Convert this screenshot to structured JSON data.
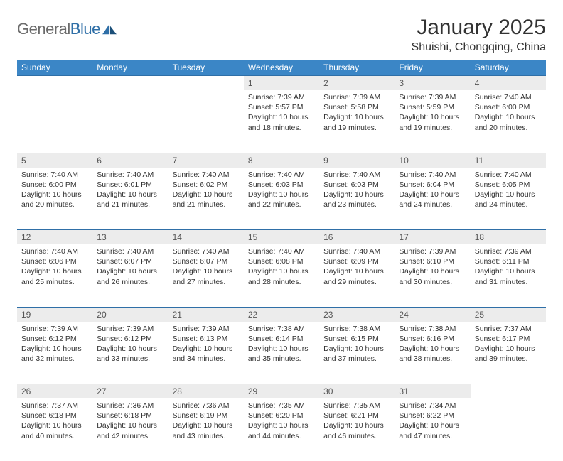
{
  "logo": {
    "text1": "General",
    "text2": "Blue"
  },
  "title": "January 2025",
  "location": "Shuishi, Chongqing, China",
  "colors": {
    "header_bg": "#3b86c6",
    "header_text": "#ffffff",
    "daynum_bg": "#ececec",
    "rule": "#2f6fa7",
    "body_text": "#333333",
    "logo_gray": "#6b6b6b",
    "logo_blue": "#2f6fa7"
  },
  "day_headers": [
    "Sunday",
    "Monday",
    "Tuesday",
    "Wednesday",
    "Thursday",
    "Friday",
    "Saturday"
  ],
  "weeks": [
    {
      "nums": [
        "",
        "",
        "",
        "1",
        "2",
        "3",
        "4"
      ],
      "cells": [
        {
          "sunrise": "",
          "sunset": "",
          "daylight": ""
        },
        {
          "sunrise": "",
          "sunset": "",
          "daylight": ""
        },
        {
          "sunrise": "",
          "sunset": "",
          "daylight": ""
        },
        {
          "sunrise": "Sunrise: 7:39 AM",
          "sunset": "Sunset: 5:57 PM",
          "daylight": "Daylight: 10 hours and 18 minutes."
        },
        {
          "sunrise": "Sunrise: 7:39 AM",
          "sunset": "Sunset: 5:58 PM",
          "daylight": "Daylight: 10 hours and 19 minutes."
        },
        {
          "sunrise": "Sunrise: 7:39 AM",
          "sunset": "Sunset: 5:59 PM",
          "daylight": "Daylight: 10 hours and 19 minutes."
        },
        {
          "sunrise": "Sunrise: 7:40 AM",
          "sunset": "Sunset: 6:00 PM",
          "daylight": "Daylight: 10 hours and 20 minutes."
        }
      ]
    },
    {
      "nums": [
        "5",
        "6",
        "7",
        "8",
        "9",
        "10",
        "11"
      ],
      "cells": [
        {
          "sunrise": "Sunrise: 7:40 AM",
          "sunset": "Sunset: 6:00 PM",
          "daylight": "Daylight: 10 hours and 20 minutes."
        },
        {
          "sunrise": "Sunrise: 7:40 AM",
          "sunset": "Sunset: 6:01 PM",
          "daylight": "Daylight: 10 hours and 21 minutes."
        },
        {
          "sunrise": "Sunrise: 7:40 AM",
          "sunset": "Sunset: 6:02 PM",
          "daylight": "Daylight: 10 hours and 21 minutes."
        },
        {
          "sunrise": "Sunrise: 7:40 AM",
          "sunset": "Sunset: 6:03 PM",
          "daylight": "Daylight: 10 hours and 22 minutes."
        },
        {
          "sunrise": "Sunrise: 7:40 AM",
          "sunset": "Sunset: 6:03 PM",
          "daylight": "Daylight: 10 hours and 23 minutes."
        },
        {
          "sunrise": "Sunrise: 7:40 AM",
          "sunset": "Sunset: 6:04 PM",
          "daylight": "Daylight: 10 hours and 24 minutes."
        },
        {
          "sunrise": "Sunrise: 7:40 AM",
          "sunset": "Sunset: 6:05 PM",
          "daylight": "Daylight: 10 hours and 24 minutes."
        }
      ]
    },
    {
      "nums": [
        "12",
        "13",
        "14",
        "15",
        "16",
        "17",
        "18"
      ],
      "cells": [
        {
          "sunrise": "Sunrise: 7:40 AM",
          "sunset": "Sunset: 6:06 PM",
          "daylight": "Daylight: 10 hours and 25 minutes."
        },
        {
          "sunrise": "Sunrise: 7:40 AM",
          "sunset": "Sunset: 6:07 PM",
          "daylight": "Daylight: 10 hours and 26 minutes."
        },
        {
          "sunrise": "Sunrise: 7:40 AM",
          "sunset": "Sunset: 6:07 PM",
          "daylight": "Daylight: 10 hours and 27 minutes."
        },
        {
          "sunrise": "Sunrise: 7:40 AM",
          "sunset": "Sunset: 6:08 PM",
          "daylight": "Daylight: 10 hours and 28 minutes."
        },
        {
          "sunrise": "Sunrise: 7:40 AM",
          "sunset": "Sunset: 6:09 PM",
          "daylight": "Daylight: 10 hours and 29 minutes."
        },
        {
          "sunrise": "Sunrise: 7:39 AM",
          "sunset": "Sunset: 6:10 PM",
          "daylight": "Daylight: 10 hours and 30 minutes."
        },
        {
          "sunrise": "Sunrise: 7:39 AM",
          "sunset": "Sunset: 6:11 PM",
          "daylight": "Daylight: 10 hours and 31 minutes."
        }
      ]
    },
    {
      "nums": [
        "19",
        "20",
        "21",
        "22",
        "23",
        "24",
        "25"
      ],
      "cells": [
        {
          "sunrise": "Sunrise: 7:39 AM",
          "sunset": "Sunset: 6:12 PM",
          "daylight": "Daylight: 10 hours and 32 minutes."
        },
        {
          "sunrise": "Sunrise: 7:39 AM",
          "sunset": "Sunset: 6:12 PM",
          "daylight": "Daylight: 10 hours and 33 minutes."
        },
        {
          "sunrise": "Sunrise: 7:39 AM",
          "sunset": "Sunset: 6:13 PM",
          "daylight": "Daylight: 10 hours and 34 minutes."
        },
        {
          "sunrise": "Sunrise: 7:38 AM",
          "sunset": "Sunset: 6:14 PM",
          "daylight": "Daylight: 10 hours and 35 minutes."
        },
        {
          "sunrise": "Sunrise: 7:38 AM",
          "sunset": "Sunset: 6:15 PM",
          "daylight": "Daylight: 10 hours and 37 minutes."
        },
        {
          "sunrise": "Sunrise: 7:38 AM",
          "sunset": "Sunset: 6:16 PM",
          "daylight": "Daylight: 10 hours and 38 minutes."
        },
        {
          "sunrise": "Sunrise: 7:37 AM",
          "sunset": "Sunset: 6:17 PM",
          "daylight": "Daylight: 10 hours and 39 minutes."
        }
      ]
    },
    {
      "nums": [
        "26",
        "27",
        "28",
        "29",
        "30",
        "31",
        ""
      ],
      "cells": [
        {
          "sunrise": "Sunrise: 7:37 AM",
          "sunset": "Sunset: 6:18 PM",
          "daylight": "Daylight: 10 hours and 40 minutes."
        },
        {
          "sunrise": "Sunrise: 7:36 AM",
          "sunset": "Sunset: 6:18 PM",
          "daylight": "Daylight: 10 hours and 42 minutes."
        },
        {
          "sunrise": "Sunrise: 7:36 AM",
          "sunset": "Sunset: 6:19 PM",
          "daylight": "Daylight: 10 hours and 43 minutes."
        },
        {
          "sunrise": "Sunrise: 7:35 AM",
          "sunset": "Sunset: 6:20 PM",
          "daylight": "Daylight: 10 hours and 44 minutes."
        },
        {
          "sunrise": "Sunrise: 7:35 AM",
          "sunset": "Sunset: 6:21 PM",
          "daylight": "Daylight: 10 hours and 46 minutes."
        },
        {
          "sunrise": "Sunrise: 7:34 AM",
          "sunset": "Sunset: 6:22 PM",
          "daylight": "Daylight: 10 hours and 47 minutes."
        },
        {
          "sunrise": "",
          "sunset": "",
          "daylight": ""
        }
      ]
    }
  ]
}
